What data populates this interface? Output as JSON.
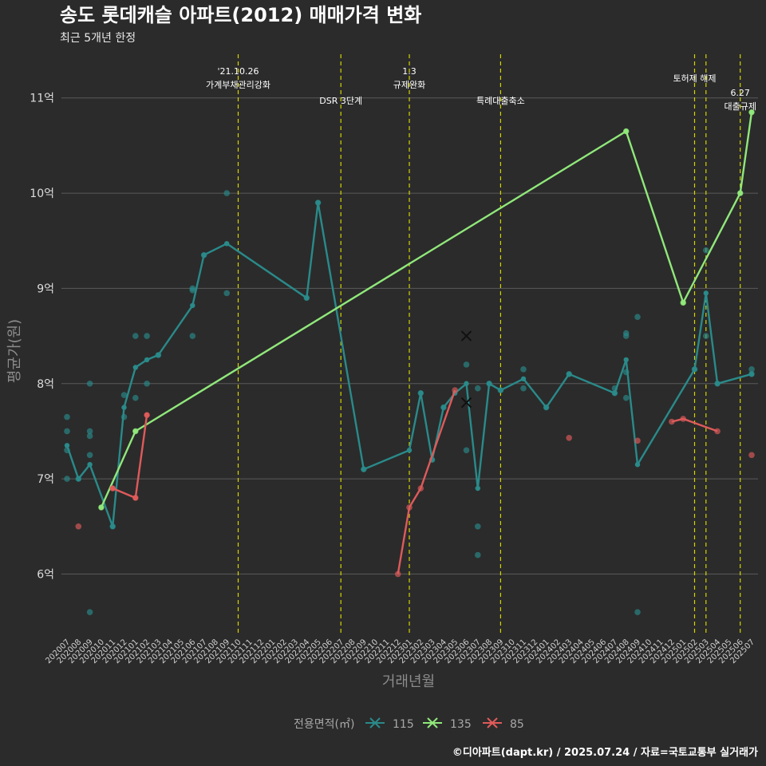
{
  "title": "송도 롯데캐슬 아파트(2012) 매매가격 변화",
  "subtitle": "최근 5개년 한정",
  "caption": "©디아파트(dapt.kr) / 2025.07.24 / 자료=국토교통부 실거래가",
  "colors": {
    "background": "#2b2b2b",
    "grid": "#5a5a5a",
    "event_line": "#d4d400",
    "s115": "#2a8a8a",
    "s135": "#90e87a",
    "s85": "#e05a5a"
  },
  "chart_data": {
    "type": "line",
    "title": "송도 롯데캐슬 아파트(2012) 매매가격 변화",
    "subtitle": "최근 5개년 한정",
    "xlabel": "거래년월",
    "ylabel": "평균가(원)",
    "x_ticks": [
      "202007",
      "202008",
      "202009",
      "202010",
      "202011",
      "202012",
      "202101",
      "202102",
      "202103",
      "202104",
      "202105",
      "202106",
      "202107",
      "202108",
      "202109",
      "202110",
      "202111",
      "202112",
      "202201",
      "202202",
      "202203",
      "202204",
      "202205",
      "202206",
      "202207",
      "202208",
      "202209",
      "202210",
      "202211",
      "202212",
      "202301",
      "202302",
      "202303",
      "202304",
      "202305",
      "202306",
      "202307",
      "202308",
      "202309",
      "202310",
      "202311",
      "202312",
      "202401",
      "202402",
      "202403",
      "202404",
      "202405",
      "202406",
      "202407",
      "202408",
      "202409",
      "202410",
      "202411",
      "202412",
      "202501",
      "202502",
      "202503",
      "202504",
      "202505",
      "202506",
      "202507"
    ],
    "ylim": [
      5.35,
      11.4
    ],
    "y_ticks": [
      {
        "value": 6,
        "label": "6억"
      },
      {
        "value": 7,
        "label": "7억"
      },
      {
        "value": 8,
        "label": "8억"
      },
      {
        "value": 9,
        "label": "9억"
      },
      {
        "value": 10,
        "label": "10억"
      },
      {
        "value": 11,
        "label": "11억"
      }
    ],
    "grid": true,
    "legend": {
      "title": "전용면적(㎡)",
      "position": "bottom",
      "items": [
        "115",
        "135",
        "85"
      ]
    },
    "series": [
      {
        "name": "115",
        "color": "#2a8a8a",
        "line": [
          [
            "202007",
            7.35
          ],
          [
            "202008",
            7.0
          ],
          [
            "202009",
            7.15
          ],
          [
            "202011",
            6.5
          ],
          [
            "202012",
            7.75
          ],
          [
            "202101",
            8.17
          ],
          [
            "202102",
            8.25
          ],
          [
            "202103",
            8.3
          ],
          [
            "202106",
            8.82
          ],
          [
            "202107",
            9.35
          ],
          [
            "202109",
            9.47
          ],
          [
            "202204",
            8.9
          ],
          [
            "202205",
            9.9
          ],
          [
            "202209",
            7.1
          ],
          [
            "202301",
            7.3
          ],
          [
            "202302",
            7.9
          ],
          [
            "202303",
            7.2
          ],
          [
            "202304",
            7.75
          ],
          [
            "202305",
            7.9
          ],
          [
            "202306",
            8.0
          ],
          [
            "202307",
            6.9
          ],
          [
            "202308",
            8.0
          ],
          [
            "202309",
            7.93
          ],
          [
            "202311",
            8.05
          ],
          [
            "202401",
            7.75
          ],
          [
            "202403",
            8.1
          ],
          [
            "202407",
            7.9
          ],
          [
            "202408",
            8.25
          ],
          [
            "202409",
            7.15
          ],
          [
            "202502",
            8.15
          ],
          [
            "202503",
            8.95
          ],
          [
            "202504",
            8.0
          ],
          [
            "202507",
            8.1
          ]
        ],
        "points": [
          [
            "202007",
            7.65
          ],
          [
            "202007",
            7.5
          ],
          [
            "202007",
            7.3
          ],
          [
            "202007",
            7.0
          ],
          [
            "202008",
            7.0
          ],
          [
            "202009",
            8.0
          ],
          [
            "202009",
            7.5
          ],
          [
            "202009",
            7.45
          ],
          [
            "202009",
            7.25
          ],
          [
            "202009",
            5.6
          ],
          [
            "202011",
            6.5
          ],
          [
            "202012",
            7.88
          ],
          [
            "202012",
            7.65
          ],
          [
            "202101",
            8.5
          ],
          [
            "202101",
            7.85
          ],
          [
            "202102",
            8.5
          ],
          [
            "202102",
            8.0
          ],
          [
            "202103",
            8.3
          ],
          [
            "202106",
            9.0
          ],
          [
            "202106",
            8.98
          ],
          [
            "202106",
            8.5
          ],
          [
            "202107",
            9.35
          ],
          [
            "202109",
            10.0
          ],
          [
            "202109",
            8.95
          ],
          [
            "202204",
            8.9
          ],
          [
            "202205",
            9.9
          ],
          [
            "202209",
            7.1
          ],
          [
            "202302",
            7.9
          ],
          [
            "202303",
            7.2
          ],
          [
            "202304",
            7.75
          ],
          [
            "202306",
            8.2
          ],
          [
            "202306",
            7.3
          ],
          [
            "202307",
            7.95
          ],
          [
            "202307",
            6.5
          ],
          [
            "202307",
            6.2
          ],
          [
            "202308",
            8.0
          ],
          [
            "202309",
            7.93
          ],
          [
            "202311",
            8.15
          ],
          [
            "202311",
            7.95
          ],
          [
            "202401",
            7.75
          ],
          [
            "202403",
            8.1
          ],
          [
            "202407",
            7.95
          ],
          [
            "202407",
            7.9
          ],
          [
            "202408",
            8.53
          ],
          [
            "202408",
            8.5
          ],
          [
            "202408",
            8.12
          ],
          [
            "202408",
            7.85
          ],
          [
            "202409",
            8.7
          ],
          [
            "202409",
            5.6
          ],
          [
            "202502",
            8.15
          ],
          [
            "202503",
            9.4
          ],
          [
            "202503",
            8.5
          ],
          [
            "202504",
            8.0
          ],
          [
            "202507",
            8.15
          ],
          [
            "202507",
            8.1
          ]
        ],
        "cancelled": [
          [
            "202306",
            8.5
          ],
          [
            "202306",
            7.8
          ]
        ]
      },
      {
        "name": "135",
        "color": "#90e87a",
        "line": [
          [
            "202010",
            6.7
          ],
          [
            "202101",
            7.5
          ],
          [
            "202408",
            10.65
          ],
          [
            "202501",
            8.85
          ],
          [
            "202506",
            10.0
          ],
          [
            "202507",
            10.85
          ]
        ],
        "points": [
          [
            "202010",
            6.7
          ],
          [
            "202101",
            7.5
          ],
          [
            "202408",
            10.65
          ],
          [
            "202501",
            8.85
          ],
          [
            "202506",
            10.0
          ],
          [
            "202507",
            10.85
          ]
        ],
        "cancelled": []
      },
      {
        "name": "85",
        "color": "#e05a5a",
        "line": [
          [
            "202011",
            6.9
          ],
          [
            "202101",
            6.8
          ],
          [
            "202102",
            7.67
          ]
        ],
        "line2": [
          [
            "202212",
            6.0
          ],
          [
            "202301",
            6.7
          ],
          [
            "202302",
            6.9
          ],
          [
            "202305",
            7.93
          ]
        ],
        "line3": [
          [
            "202412",
            7.6
          ],
          [
            "202501",
            7.63
          ],
          [
            "202504",
            7.5
          ]
        ],
        "points": [
          [
            "202008",
            6.5
          ],
          [
            "202011",
            6.9
          ],
          [
            "202101",
            6.8
          ],
          [
            "202102",
            7.67
          ],
          [
            "202212",
            6.0
          ],
          [
            "202301",
            6.7
          ],
          [
            "202302",
            6.9
          ],
          [
            "202305",
            7.93
          ],
          [
            "202403",
            7.43
          ],
          [
            "202409",
            7.4
          ],
          [
            "202412",
            7.6
          ],
          [
            "202501",
            7.63
          ],
          [
            "202504",
            7.5
          ],
          [
            "202507",
            7.25
          ]
        ],
        "cancelled": []
      }
    ],
    "events": [
      {
        "x": "202110",
        "lines": [
          "'21.10.26",
          "가계부채관리강화"
        ],
        "row": 0
      },
      {
        "x": "202207",
        "lines": [
          "DSR 3단계"
        ],
        "row": 1
      },
      {
        "x": "202301",
        "lines": [
          "1.3",
          "규제완화"
        ],
        "row": 0
      },
      {
        "x": "202309",
        "lines": [
          "특례대출축소"
        ],
        "row": 1
      },
      {
        "x": "202502",
        "lines": [
          "토허제 해제"
        ],
        "row": 0
      },
      {
        "x": "202503",
        "lines": [],
        "row": 0
      },
      {
        "x": "202506",
        "lines": [
          "6.27",
          "대출규제"
        ],
        "row": 2
      }
    ]
  }
}
